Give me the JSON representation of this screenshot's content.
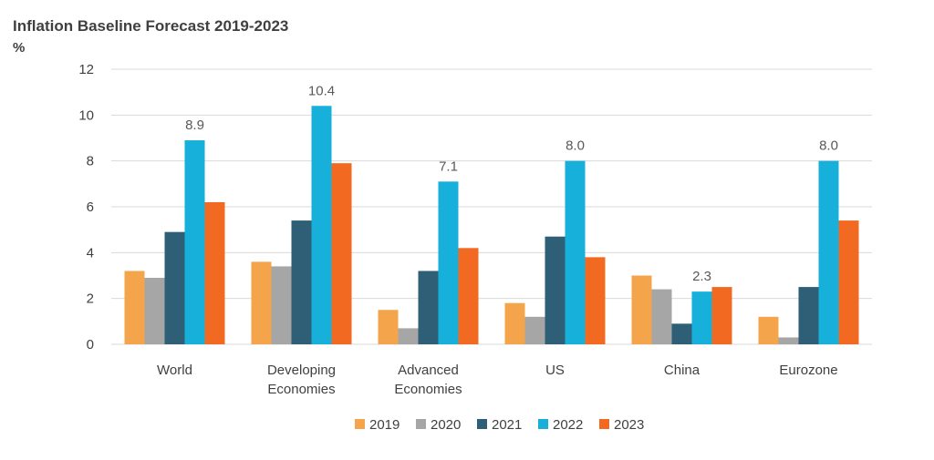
{
  "chart_data": {
    "type": "bar",
    "title": "Inflation Baseline Forecast 2019-2023",
    "unit_label": "%",
    "categories": [
      [
        "World"
      ],
      [
        "Developing",
        "Economies"
      ],
      [
        "Advanced",
        "Economies"
      ],
      [
        "US"
      ],
      [
        "China"
      ],
      [
        "Eurozone"
      ]
    ],
    "series": [
      {
        "name": "2019",
        "color": "#F4A44A",
        "values": [
          3.2,
          3.6,
          1.5,
          1.8,
          3.0,
          1.2
        ]
      },
      {
        "name": "2020",
        "color": "#A6A6A6",
        "values": [
          2.9,
          3.4,
          0.7,
          1.2,
          2.4,
          0.3
        ]
      },
      {
        "name": "2021",
        "color": "#2E5F77",
        "values": [
          4.9,
          5.4,
          3.2,
          4.7,
          0.9,
          2.5
        ]
      },
      {
        "name": "2022",
        "color": "#17B0DA",
        "values": [
          8.9,
          10.4,
          7.1,
          8.0,
          2.3,
          8.0
        ]
      },
      {
        "name": "2023",
        "color": "#F26A21",
        "values": [
          6.2,
          7.9,
          4.2,
          3.8,
          2.5,
          5.4
        ]
      }
    ],
    "data_labels": [
      {
        "category_index": 0,
        "series_index": 3,
        "text": "8.9"
      },
      {
        "category_index": 1,
        "series_index": 3,
        "text": "10.4"
      },
      {
        "category_index": 2,
        "series_index": 3,
        "text": "7.1"
      },
      {
        "category_index": 3,
        "series_index": 3,
        "text": "8.0"
      },
      {
        "category_index": 4,
        "series_index": 3,
        "text": "2.3"
      },
      {
        "category_index": 5,
        "series_index": 3,
        "text": "8.0"
      }
    ],
    "y_ticks": [
      "0",
      "2",
      "4",
      "6",
      "8",
      "10",
      "12"
    ],
    "ylim": [
      0,
      12
    ],
    "grid": true,
    "legend_position": "bottom"
  }
}
